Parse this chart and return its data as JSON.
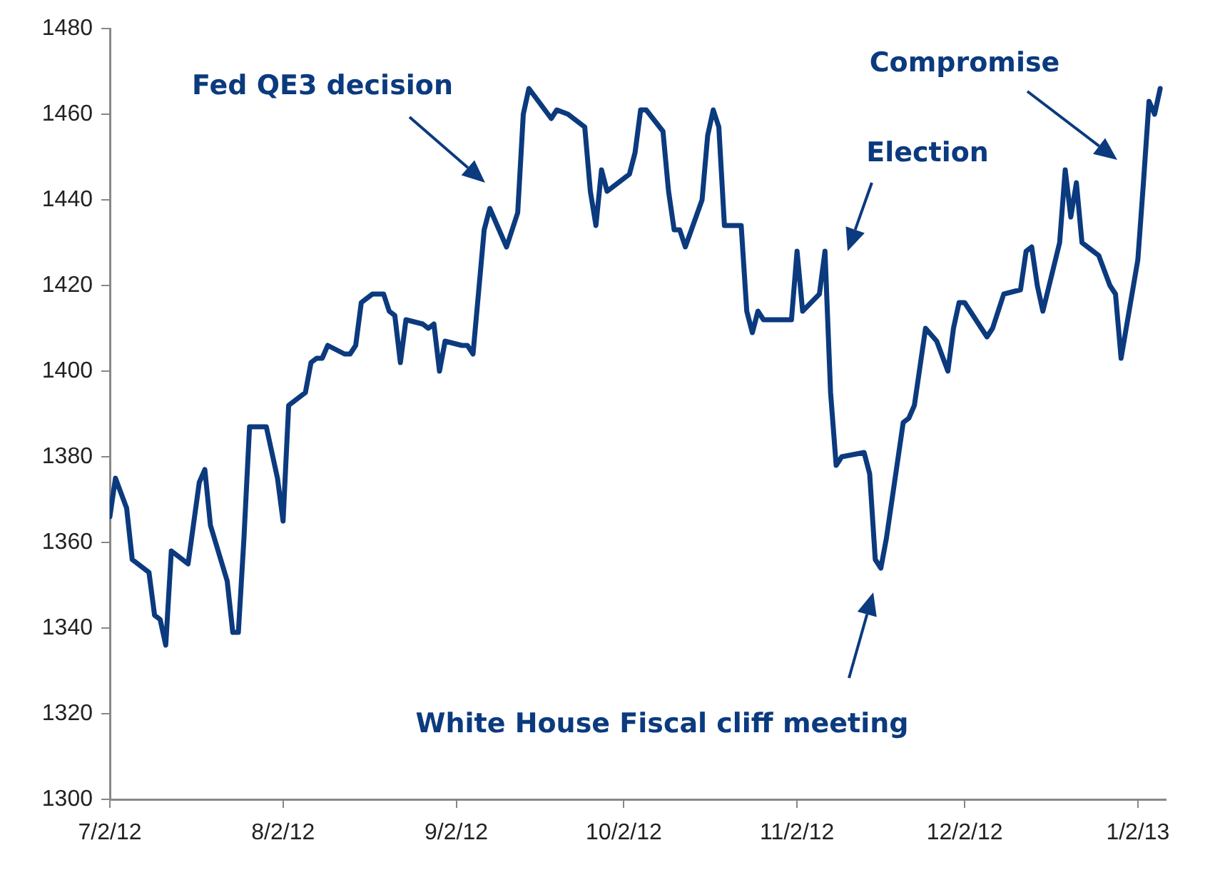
{
  "chart_data": {
    "type": "line",
    "color": "#0b3a7e",
    "line_style": "solid",
    "marker": "none",
    "grid": false,
    "legend": false,
    "x": [
      "2012-07-02",
      "2012-07-03",
      "2012-07-05",
      "2012-07-06",
      "2012-07-09",
      "2012-07-10",
      "2012-07-11",
      "2012-07-12",
      "2012-07-13",
      "2012-07-16",
      "2012-07-18",
      "2012-07-19",
      "2012-07-20",
      "2012-07-23",
      "2012-07-24",
      "2012-07-25",
      "2012-07-26",
      "2012-07-27",
      "2012-07-30",
      "2012-08-01",
      "2012-08-02",
      "2012-08-03",
      "2012-08-06",
      "2012-08-07",
      "2012-08-08",
      "2012-08-09",
      "2012-08-10",
      "2012-08-13",
      "2012-08-14",
      "2012-08-15",
      "2012-08-16",
      "2012-08-18",
      "2012-08-20",
      "2012-08-21",
      "2012-08-22",
      "2012-08-23",
      "2012-08-24",
      "2012-08-27",
      "2012-08-28",
      "2012-08-29",
      "2012-08-30",
      "2012-08-31",
      "2012-09-03",
      "2012-09-04",
      "2012-09-05",
      "2012-09-07",
      "2012-09-08",
      "2012-09-11",
      "2012-09-13",
      "2012-09-14",
      "2012-09-15",
      "2012-09-19",
      "2012-09-20",
      "2012-09-22",
      "2012-09-25",
      "2012-09-26",
      "2012-09-27",
      "2012-09-28",
      "2012-09-29",
      "2012-10-03",
      "2012-10-04",
      "2012-10-05",
      "2012-10-06",
      "2012-10-09",
      "2012-10-10",
      "2012-10-11",
      "2012-10-12",
      "2012-10-13",
      "2012-10-16",
      "2012-10-17",
      "2012-10-18",
      "2012-10-19",
      "2012-10-20",
      "2012-10-23",
      "2012-10-24",
      "2012-10-25",
      "2012-10-26",
      "2012-10-27",
      "2012-11-01",
      "2012-11-02",
      "2012-11-03",
      "2012-11-06",
      "2012-11-07",
      "2012-11-08",
      "2012-11-09",
      "2012-11-10",
      "2012-11-14",
      "2012-11-15",
      "2012-11-16",
      "2012-11-17",
      "2012-11-18",
      "2012-11-21",
      "2012-11-22",
      "2012-11-23",
      "2012-11-25",
      "2012-11-27",
      "2012-11-29",
      "2012-11-30",
      "2012-12-01",
      "2012-12-02",
      "2012-12-06",
      "2012-12-07",
      "2012-12-09",
      "2012-12-12",
      "2012-12-13",
      "2012-12-14",
      "2012-12-15",
      "2012-12-16",
      "2012-12-19",
      "2012-12-20",
      "2012-12-21",
      "2012-12-22",
      "2012-12-23",
      "2012-12-26",
      "2012-12-28",
      "2012-12-29",
      "2012-12-30",
      "2013-01-02",
      "2013-01-03",
      "2013-01-04",
      "2013-01-05",
      "2013-01-06"
    ],
    "values": [
      1366,
      1375,
      1368,
      1356,
      1353,
      1343,
      1342,
      1336,
      1358,
      1355,
      1374,
      1377,
      1364,
      1351,
      1339,
      1339,
      1361,
      1387,
      1387,
      1375,
      1365,
      1392,
      1395,
      1402,
      1403,
      1403,
      1406,
      1404,
      1404,
      1406,
      1416,
      1418,
      1418,
      1414,
      1413,
      1402,
      1412,
      1411,
      1410,
      1411,
      1400,
      1407,
      1406,
      1406,
      1404,
      1433,
      1438,
      1429,
      1437,
      1460,
      1466,
      1459,
      1461,
      1460,
      1457,
      1442,
      1434,
      1447,
      1442,
      1446,
      1451,
      1461,
      1461,
      1456,
      1442,
      1433,
      1433,
      1429,
      1440,
      1455,
      1461,
      1457,
      1434,
      1434,
      1414,
      1409,
      1414,
      1412,
      1412,
      1428,
      1414,
      1418,
      1428,
      1395,
      1378,
      1380,
      1381,
      1376,
      1356,
      1354,
      1361,
      1388,
      1389,
      1392,
      1410,
      1407,
      1400,
      1410,
      1416,
      1416,
      1408,
      1410,
      1418,
      1419,
      1428,
      1429,
      1420,
      1414,
      1430,
      1447,
      1436,
      1444,
      1430,
      1427,
      1420,
      1418,
      1403,
      1426,
      1444,
      1463,
      1460,
      1466
    ],
    "xlim": [
      "2012-07-02",
      "2013-01-07"
    ],
    "xticks": [
      {
        "value": "2012-07-02",
        "label": "7/2/12"
      },
      {
        "value": "2012-08-02",
        "label": "8/2/12"
      },
      {
        "value": "2012-09-02",
        "label": "9/2/12"
      },
      {
        "value": "2012-10-02",
        "label": "10/2/12"
      },
      {
        "value": "2012-11-02",
        "label": "11/2/12"
      },
      {
        "value": "2012-12-02",
        "label": "12/2/12"
      },
      {
        "value": "2013-01-02",
        "label": "1/2/13"
      }
    ],
    "ylim": [
      1300,
      1480
    ],
    "yticks": [
      1300,
      1320,
      1340,
      1360,
      1380,
      1400,
      1420,
      1440,
      1460,
      1480
    ],
    "annotations": [
      "Fed QE3 decision",
      "Election",
      "White House Fiscal cliff meeting",
      "Compromise"
    ]
  }
}
